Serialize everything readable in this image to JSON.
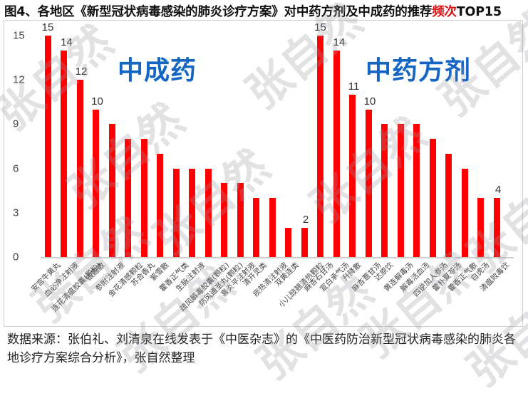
{
  "title": {
    "prefix": "图4、各地区《新型冠状病毒感染的肺炎诊疗方案》对中药方剂及中成药的推荐",
    "highlight": "频次",
    "suffix": "TOP15"
  },
  "panels": {
    "left_title": "中成药",
    "right_title": "中药方剂"
  },
  "watermark": "张自然",
  "source_note": "数据来源：张伯礼、刘清泉在线发表于《中医杂志》的《中医药防治新型冠状病毒感染的肺炎各地诊疗方案综合分析》，张自然整理",
  "colors": {
    "bar": "#ff0000",
    "panel_title": "#1466c2",
    "highlight": "#e01010"
  },
  "chart_data": {
    "type": "bar",
    "title": "图4、各地区《新型冠状病毒感染的肺炎诊疗方案》对中药方剂及中成药的推荐频次TOP15",
    "xlabel": "",
    "ylabel": "",
    "ylim": [
      0,
      15
    ],
    "yticks": [
      0,
      3,
      6,
      9,
      12,
      15
    ],
    "grid": false,
    "legend": null,
    "groups": [
      {
        "name": "中成药",
        "categories": [
          "安宫牛黄丸",
          "血必净注射液",
          "连花清瘟胶囊(颗粒)",
          "银翘散",
          "参附注射液",
          "金花清感颗粒",
          "苏合香丸",
          "紫雪散",
          "藿香正气类",
          "生脉注射液",
          "疏风解毒胶囊(颗粒)",
          "防风通圣丸(颗粒)",
          "喜炎平注射液",
          "清开灵类",
          "痰热清注射液",
          "双黄连类",
          "小儿豉翘清热颗粒"
        ],
        "values": [
          15,
          14,
          12,
          10,
          9,
          8,
          8,
          7,
          6,
          6,
          6,
          5,
          5,
          4,
          4,
          2,
          2
        ],
        "data_labels": {
          "0": "15",
          "1": "14",
          "2": "12",
          "3": "10",
          "16": "2"
        }
      },
      {
        "name": "中药方剂",
        "categories": [
          "麻杏石甘汤",
          "宣白承气汤",
          "升降散",
          "麻杏薏甘汤",
          "达原饮",
          "黄连解毒汤",
          "解毒活血汤",
          "四逆加人参汤",
          "藿朴夏苓汤",
          "藿香正气散",
          "白虎汤",
          "清瘟败毒饮"
        ],
        "values": [
          15,
          14,
          11,
          10,
          9,
          9,
          9,
          8,
          7,
          6,
          4,
          4
        ],
        "data_labels": {
          "0": "15",
          "1": "14",
          "2": "11",
          "3": "10",
          "11": "4"
        }
      }
    ]
  }
}
